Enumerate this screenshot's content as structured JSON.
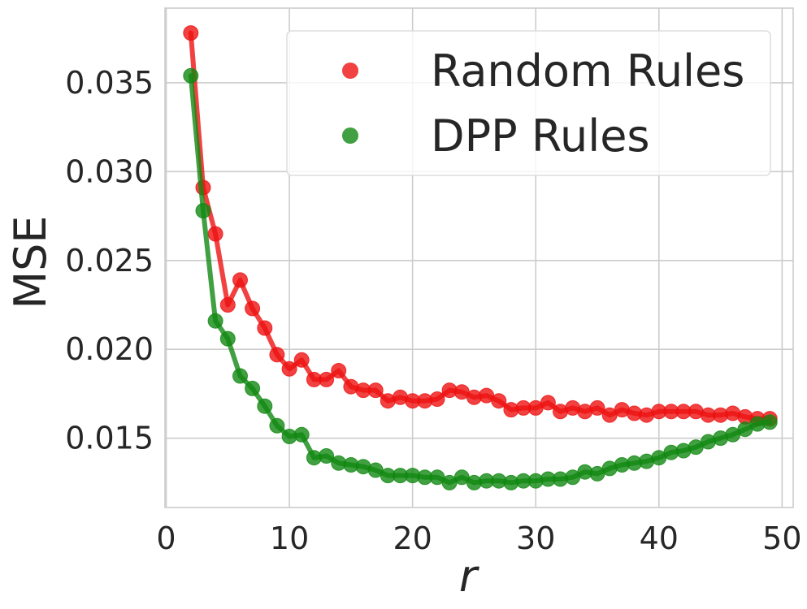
{
  "chart_data": {
    "type": "line",
    "xlabel": "r",
    "ylabel": "MSE",
    "xlim": [
      -0.1,
      50.9
    ],
    "ylim": [
      0.0111,
      0.0392
    ],
    "xticks": [
      0,
      10,
      20,
      30,
      40,
      50
    ],
    "xtick_labels": [
      "0",
      "10",
      "20",
      "30",
      "40",
      "50"
    ],
    "yticks": [
      0.015,
      0.02,
      0.025,
      0.03,
      0.035
    ],
    "ytick_labels": [
      "0.015",
      "0.020",
      "0.025",
      "0.030",
      "0.035"
    ],
    "grid": true,
    "legend_position": "top-right",
    "x": [
      2,
      3,
      4,
      5,
      6,
      7,
      8,
      9,
      10,
      11,
      12,
      13,
      14,
      15,
      16,
      17,
      18,
      19,
      20,
      21,
      22,
      23,
      24,
      25,
      26,
      27,
      28,
      29,
      30,
      31,
      32,
      33,
      34,
      35,
      36,
      37,
      38,
      39,
      40,
      41,
      42,
      43,
      44,
      45,
      46,
      47,
      48,
      49
    ],
    "series": [
      {
        "name": "Random Rules",
        "color": "#ee1111",
        "values": [
          0.0378,
          0.0291,
          0.0265,
          0.0225,
          0.0239,
          0.0223,
          0.0212,
          0.0197,
          0.0189,
          0.0194,
          0.0183,
          0.0183,
          0.0188,
          0.0179,
          0.0177,
          0.0177,
          0.0171,
          0.0173,
          0.0171,
          0.0171,
          0.0172,
          0.0177,
          0.0176,
          0.0173,
          0.0174,
          0.0171,
          0.0166,
          0.0167,
          0.0167,
          0.017,
          0.0165,
          0.0167,
          0.0165,
          0.0167,
          0.0163,
          0.0166,
          0.0164,
          0.0163,
          0.0165,
          0.0165,
          0.0165,
          0.0165,
          0.0163,
          0.0163,
          0.0164,
          0.0162,
          0.0161,
          0.0161
        ]
      },
      {
        "name": "DPP Rules",
        "color": "#118811",
        "values": [
          0.0354,
          0.0278,
          0.0216,
          0.0206,
          0.0185,
          0.0178,
          0.0168,
          0.0157,
          0.0151,
          0.0152,
          0.0139,
          0.014,
          0.0136,
          0.0135,
          0.0134,
          0.0132,
          0.0129,
          0.0129,
          0.0129,
          0.0128,
          0.0128,
          0.0125,
          0.0128,
          0.0125,
          0.0126,
          0.0126,
          0.0125,
          0.0126,
          0.0126,
          0.0127,
          0.0127,
          0.0128,
          0.0131,
          0.013,
          0.0133,
          0.0135,
          0.0136,
          0.0137,
          0.0139,
          0.0142,
          0.0143,
          0.0145,
          0.0148,
          0.015,
          0.0152,
          0.0155,
          0.0158,
          0.0159
        ]
      }
    ]
  }
}
